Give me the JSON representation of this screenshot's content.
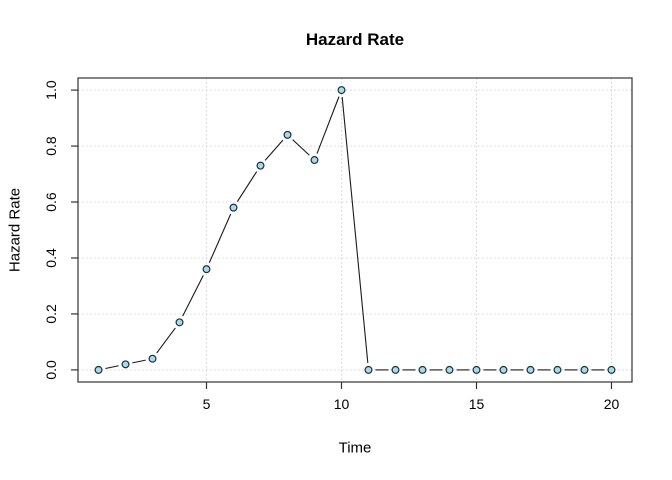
{
  "chart_data": {
    "type": "line",
    "style": "r-base-type-b",
    "title": "Hazard Rate",
    "xlabel": "Time",
    "ylabel": "Hazard Rate",
    "x": [
      1,
      2,
      3,
      4,
      5,
      6,
      7,
      8,
      9,
      10,
      11,
      12,
      13,
      14,
      15,
      16,
      17,
      18,
      19,
      20
    ],
    "y": [
      0.0,
      0.02,
      0.04,
      0.17,
      0.36,
      0.58,
      0.73,
      0.84,
      0.75,
      1.0,
      0.0,
      0.0,
      0.0,
      0.0,
      0.0,
      0.0,
      0.0,
      0.0,
      0.0,
      0.0
    ],
    "series": [
      {
        "name": "hazard",
        "values": [
          0.0,
          0.02,
          0.04,
          0.17,
          0.36,
          0.58,
          0.73,
          0.84,
          0.75,
          1.0,
          0.0,
          0.0,
          0.0,
          0.0,
          0.0,
          0.0,
          0.0,
          0.0,
          0.0,
          0.0
        ]
      }
    ],
    "xticks": [
      5,
      10,
      15,
      20
    ],
    "xtick_labels": [
      "5",
      "10",
      "15",
      "20"
    ],
    "yticks": [
      0.0,
      0.2,
      0.4,
      0.6,
      0.8,
      1.0
    ],
    "ytick_labels": [
      "0.0",
      "0.2",
      "0.4",
      "0.6",
      "0.8",
      "1.0"
    ],
    "xlim": [
      0.24,
      20.76
    ],
    "ylim": [
      -0.0432,
      1.0432
    ],
    "grid": "dotted",
    "legend": "none",
    "marker": "circle",
    "marker_fill": "#ADD8E6",
    "marker_stroke": "#15323d",
    "line_color": "#1a1a1a",
    "grid_color": "#d4d4d4",
    "axis_color": "#333333",
    "background": "#ffffff"
  }
}
